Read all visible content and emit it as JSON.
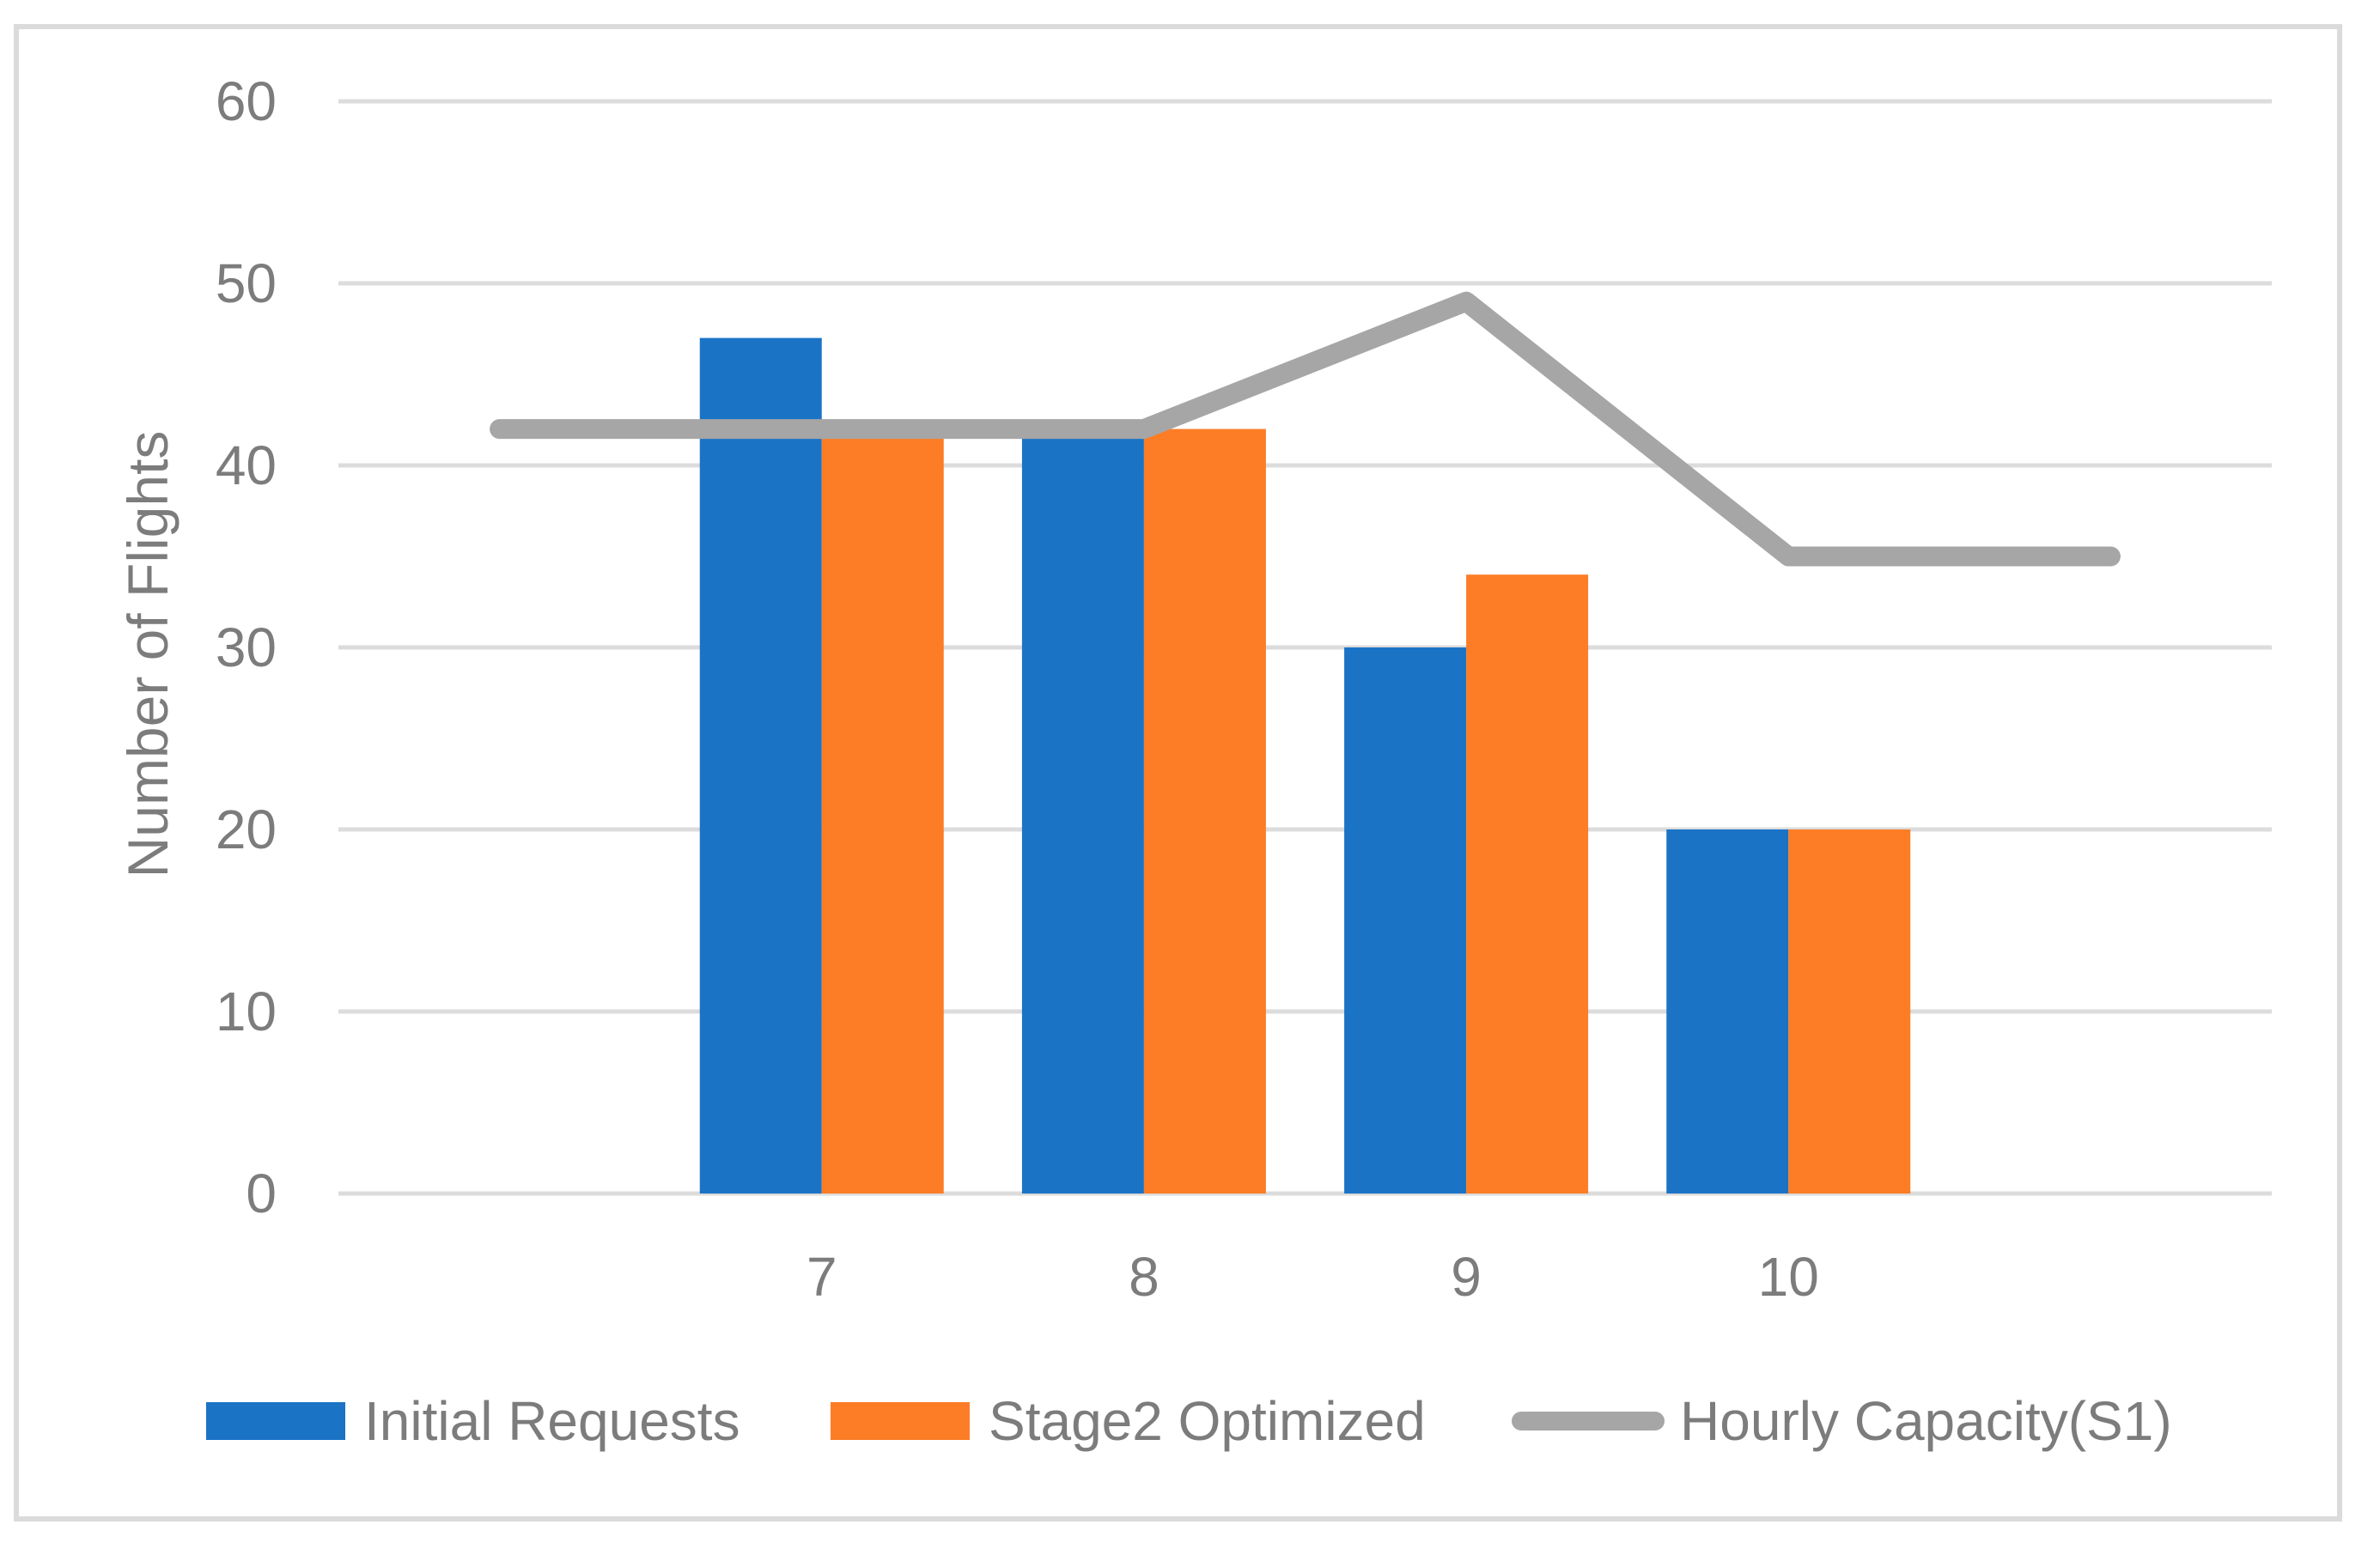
{
  "figure": {
    "background": "#FFFFFF",
    "border_color": "#DBDBDB",
    "gridline_color": "#DCDCDC",
    "text_color": "#7C7C7C"
  },
  "chart_data": {
    "type": "bar+line",
    "title": "",
    "xlabel": "",
    "ylabel": "Number of Flights",
    "categories": [
      "7",
      "8",
      "9",
      "10"
    ],
    "y_ticks": [
      0,
      10,
      20,
      30,
      40,
      50,
      60
    ],
    "ylim": [
      0,
      60
    ],
    "grid": "horizontal-only",
    "legend_position": "bottom",
    "series": [
      {
        "name": "Initial Requests",
        "type": "bar",
        "color": "#1B73C6",
        "values": [
          47,
          42,
          30,
          20
        ]
      },
      {
        "name": "Stage2 Optimized",
        "type": "bar",
        "color": "#FC7D26",
        "values": [
          42,
          42,
          34,
          20
        ]
      },
      {
        "name": "Hourly Capacity(S1)",
        "type": "line",
        "color": "#A6A6A6",
        "values": [
          42,
          42,
          49,
          35
        ],
        "extends_left_value": 42,
        "extends_right_value": 35
      }
    ]
  },
  "legend": {
    "item1_label": "Initial Requests",
    "item2_label": "Stage2 Optimized",
    "item3_label": "Hourly Capacity(S1)"
  }
}
